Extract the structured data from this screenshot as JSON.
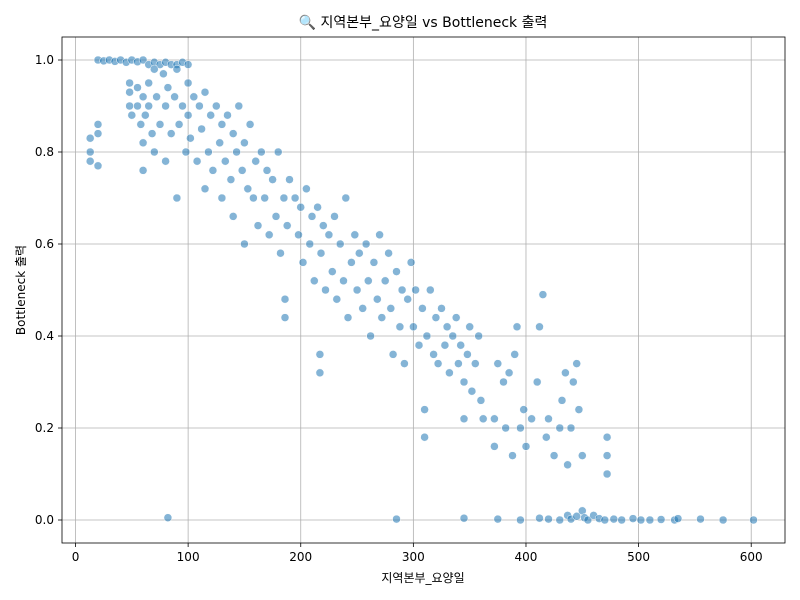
{
  "chart_data": {
    "type": "scatter",
    "title": "🔍 지역본부_요양일 vs Bottleneck 출력",
    "xlabel": "지역본부_요양일",
    "ylabel": "Bottleneck 출력",
    "xlim": [
      -12,
      630
    ],
    "ylim": [
      -0.05,
      1.05
    ],
    "x_ticks": [
      0,
      100,
      200,
      300,
      400,
      500,
      600
    ],
    "y_ticks": [
      0.0,
      0.2,
      0.4,
      0.6,
      0.8,
      1.0
    ],
    "x_tick_labels": [
      "0",
      "100",
      "200",
      "300",
      "400",
      "500",
      "600"
    ],
    "y_tick_labels": [
      "0.0",
      "0.2",
      "0.4",
      "0.6",
      "0.8",
      "1.0"
    ],
    "grid": true,
    "legend": "none",
    "color": "#1f77b4",
    "marker_opacity": 0.55,
    "trend_description": "dense band declining roughly linearly from ~1.0 at x≈20-100 to ~0.2 at x≈400-470, with points near 0.0 from x≈430 to 600",
    "points": [
      [
        20,
        1.0
      ],
      [
        25,
        0.998
      ],
      [
        30,
        1.0
      ],
      [
        35,
        0.997
      ],
      [
        40,
        1.0
      ],
      [
        45,
        0.995
      ],
      [
        50,
        1.0
      ],
      [
        55,
        0.996
      ],
      [
        60,
        1.0
      ],
      [
        65,
        0.99
      ],
      [
        70,
        0.995
      ],
      [
        75,
        0.99
      ],
      [
        80,
        0.995
      ],
      [
        85,
        0.99
      ],
      [
        90,
        0.99
      ],
      [
        95,
        0.995
      ],
      [
        100,
        0.99
      ],
      [
        13,
        0.83
      ],
      [
        13,
        0.8
      ],
      [
        13,
        0.78
      ],
      [
        20,
        0.86
      ],
      [
        20,
        0.84
      ],
      [
        20,
        0.77
      ],
      [
        48,
        0.95
      ],
      [
        48,
        0.93
      ],
      [
        48,
        0.9
      ],
      [
        50,
        0.88
      ],
      [
        55,
        0.94
      ],
      [
        55,
        0.9
      ],
      [
        58,
        0.86
      ],
      [
        60,
        0.92
      ],
      [
        60,
        0.82
      ],
      [
        60,
        0.76
      ],
      [
        62,
        0.88
      ],
      [
        65,
        0.95
      ],
      [
        65,
        0.9
      ],
      [
        68,
        0.84
      ],
      [
        70,
        0.98
      ],
      [
        70,
        0.8
      ],
      [
        72,
        0.92
      ],
      [
        75,
        0.86
      ],
      [
        78,
        0.97
      ],
      [
        80,
        0.9
      ],
      [
        80,
        0.78
      ],
      [
        82,
        0.94
      ],
      [
        85,
        0.84
      ],
      [
        88,
        0.92
      ],
      [
        90,
        0.98
      ],
      [
        90,
        0.7
      ],
      [
        92,
        0.86
      ],
      [
        95,
        0.9
      ],
      [
        98,
        0.8
      ],
      [
        100,
        0.95
      ],
      [
        100,
        0.88
      ],
      [
        102,
        0.83
      ],
      [
        105,
        0.92
      ],
      [
        108,
        0.78
      ],
      [
        110,
        0.9
      ],
      [
        112,
        0.85
      ],
      [
        115,
        0.93
      ],
      [
        115,
        0.72
      ],
      [
        118,
        0.8
      ],
      [
        120,
        0.88
      ],
      [
        122,
        0.76
      ],
      [
        125,
        0.9
      ],
      [
        128,
        0.82
      ],
      [
        130,
        0.86
      ],
      [
        130,
        0.7
      ],
      [
        133,
        0.78
      ],
      [
        135,
        0.88
      ],
      [
        138,
        0.74
      ],
      [
        140,
        0.84
      ],
      [
        140,
        0.66
      ],
      [
        143,
        0.8
      ],
      [
        145,
        0.9
      ],
      [
        148,
        0.76
      ],
      [
        150,
        0.82
      ],
      [
        150,
        0.6
      ],
      [
        153,
        0.72
      ],
      [
        155,
        0.86
      ],
      [
        158,
        0.7
      ],
      [
        160,
        0.78
      ],
      [
        162,
        0.64
      ],
      [
        165,
        0.8
      ],
      [
        168,
        0.7
      ],
      [
        170,
        0.76
      ],
      [
        172,
        0.62
      ],
      [
        175,
        0.74
      ],
      [
        178,
        0.66
      ],
      [
        180,
        0.8
      ],
      [
        182,
        0.58
      ],
      [
        185,
        0.7
      ],
      [
        186,
        0.48
      ],
      [
        186,
        0.44
      ],
      [
        188,
        0.64
      ],
      [
        190,
        0.74
      ],
      [
        195,
        0.7
      ],
      [
        198,
        0.62
      ],
      [
        200,
        0.68
      ],
      [
        202,
        0.56
      ],
      [
        205,
        0.72
      ],
      [
        208,
        0.6
      ],
      [
        210,
        0.66
      ],
      [
        212,
        0.52
      ],
      [
        215,
        0.68
      ],
      [
        217,
        0.36
      ],
      [
        217,
        0.32
      ],
      [
        218,
        0.58
      ],
      [
        220,
        0.64
      ],
      [
        222,
        0.5
      ],
      [
        225,
        0.62
      ],
      [
        228,
        0.54
      ],
      [
        230,
        0.66
      ],
      [
        232,
        0.48
      ],
      [
        235,
        0.6
      ],
      [
        238,
        0.52
      ],
      [
        240,
        0.7
      ],
      [
        242,
        0.44
      ],
      [
        245,
        0.56
      ],
      [
        248,
        0.62
      ],
      [
        250,
        0.5
      ],
      [
        252,
        0.58
      ],
      [
        255,
        0.46
      ],
      [
        258,
        0.6
      ],
      [
        260,
        0.52
      ],
      [
        262,
        0.4
      ],
      [
        265,
        0.56
      ],
      [
        268,
        0.48
      ],
      [
        270,
        0.62
      ],
      [
        272,
        0.44
      ],
      [
        275,
        0.52
      ],
      [
        278,
        0.58
      ],
      [
        280,
        0.46
      ],
      [
        282,
        0.36
      ],
      [
        285,
        0.54
      ],
      [
        288,
        0.42
      ],
      [
        290,
        0.5
      ],
      [
        292,
        0.34
      ],
      [
        295,
        0.48
      ],
      [
        298,
        0.56
      ],
      [
        300,
        0.42
      ],
      [
        302,
        0.5
      ],
      [
        305,
        0.38
      ],
      [
        308,
        0.46
      ],
      [
        310,
        0.24
      ],
      [
        310,
        0.18
      ],
      [
        312,
        0.4
      ],
      [
        315,
        0.5
      ],
      [
        318,
        0.36
      ],
      [
        320,
        0.44
      ],
      [
        322,
        0.34
      ],
      [
        325,
        0.46
      ],
      [
        328,
        0.38
      ],
      [
        330,
        0.42
      ],
      [
        332,
        0.32
      ],
      [
        335,
        0.4
      ],
      [
        338,
        0.44
      ],
      [
        340,
        0.34
      ],
      [
        342,
        0.38
      ],
      [
        345,
        0.3
      ],
      [
        345,
        0.22
      ],
      [
        348,
        0.36
      ],
      [
        350,
        0.42
      ],
      [
        352,
        0.28
      ],
      [
        355,
        0.34
      ],
      [
        358,
        0.4
      ],
      [
        360,
        0.26
      ],
      [
        362,
        0.22
      ],
      [
        372,
        0.22
      ],
      [
        372,
        0.16
      ],
      [
        375,
        0.34
      ],
      [
        380,
        0.3
      ],
      [
        382,
        0.2
      ],
      [
        385,
        0.32
      ],
      [
        388,
        0.14
      ],
      [
        390,
        0.36
      ],
      [
        392,
        0.42
      ],
      [
        395,
        0.2
      ],
      [
        398,
        0.24
      ],
      [
        400,
        0.16
      ],
      [
        405,
        0.22
      ],
      [
        410,
        0.3
      ],
      [
        412,
        0.42
      ],
      [
        415,
        0.49
      ],
      [
        418,
        0.18
      ],
      [
        420,
        0.22
      ],
      [
        425,
        0.14
      ],
      [
        430,
        0.2
      ],
      [
        432,
        0.26
      ],
      [
        435,
        0.32
      ],
      [
        437,
        0.12
      ],
      [
        440,
        0.2
      ],
      [
        442,
        0.3
      ],
      [
        445,
        0.34
      ],
      [
        447,
        0.24
      ],
      [
        450,
        0.14
      ],
      [
        472,
        0.18
      ],
      [
        472,
        0.14
      ],
      [
        472,
        0.1
      ],
      [
        82,
        0.005
      ],
      [
        285,
        0.002
      ],
      [
        345,
        0.004
      ],
      [
        375,
        0.002
      ],
      [
        395,
        0.0
      ],
      [
        412,
        0.004
      ],
      [
        420,
        0.002
      ],
      [
        430,
        0.0
      ],
      [
        437,
        0.01
      ],
      [
        440,
        0.002
      ],
      [
        445,
        0.008
      ],
      [
        450,
        0.02
      ],
      [
        452,
        0.005
      ],
      [
        455,
        0.0
      ],
      [
        460,
        0.01
      ],
      [
        465,
        0.003
      ],
      [
        470,
        0.0
      ],
      [
        478,
        0.002
      ],
      [
        485,
        0.0
      ],
      [
        495,
        0.003
      ],
      [
        502,
        0.0
      ],
      [
        510,
        0.0
      ],
      [
        520,
        0.001
      ],
      [
        532,
        0.0
      ],
      [
        535,
        0.003
      ],
      [
        555,
        0.002
      ],
      [
        575,
        0.0
      ],
      [
        602,
        0.0
      ]
    ]
  }
}
